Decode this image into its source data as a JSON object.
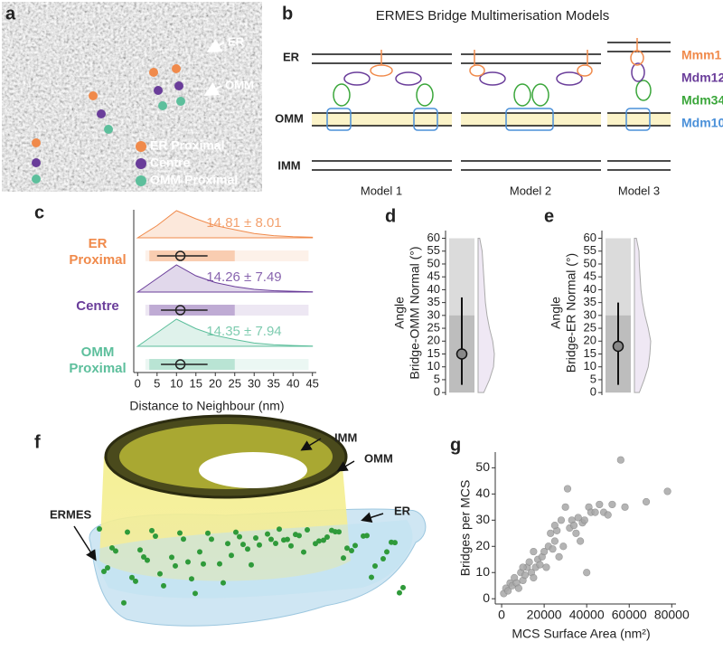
{
  "panel_labels": [
    "a",
    "b",
    "c",
    "d",
    "e",
    "f",
    "g"
  ],
  "panel_a": {
    "overlay_labels": [
      "ER",
      "OMM"
    ],
    "legend": [
      {
        "label": "ER Proximal",
        "color": "#f08a4b"
      },
      {
        "label": "Centre",
        "color": "#6a3d9a"
      },
      {
        "label": "OMM Proximal",
        "color": "#5dbf9c"
      }
    ]
  },
  "panel_b": {
    "title": "ERMES Bridge Multimerisation Models",
    "membranes": [
      "ER",
      "OMM",
      "IMM"
    ],
    "models": [
      "Model 1",
      "Model 2",
      "Model 3"
    ],
    "proteins": [
      {
        "name": "Mmm1",
        "color": "#f08a4b"
      },
      {
        "name": "Mdm12",
        "color": "#6a3d9a"
      },
      {
        "name": "Mdm34",
        "color": "#3aa63a"
      },
      {
        "name": "Mdm10",
        "color": "#4a90d9"
      }
    ]
  },
  "panel_f": {
    "labels": [
      "IMM",
      "OMM",
      "ER",
      "ERMES"
    ]
  },
  "chart_data": [
    {
      "type": "raincloud",
      "xlabel": "Distance to Neighbour (nm)",
      "xlim": [
        -1,
        46
      ],
      "xticks": [
        0,
        5,
        10,
        15,
        20,
        25,
        30,
        35,
        40,
        45
      ],
      "density_x": [
        0,
        5,
        10,
        15,
        20,
        25,
        30,
        35,
        40,
        45
      ],
      "series": [
        {
          "name": [
            "ER",
            "Proximal"
          ],
          "color": "#f08a4b",
          "summary_label": "14.81 ± 8.01",
          "median": 11,
          "whisker": [
            5,
            18
          ],
          "density": [
            0,
            0.45,
            1,
            0.7,
            0.45,
            0.3,
            0.16,
            0.08,
            0.04,
            0.02
          ]
        },
        {
          "name": [
            "Centre"
          ],
          "color": "#6a3d9a",
          "summary_label": "14.26 ± 7.49",
          "median": 11,
          "whisker": [
            6,
            18
          ],
          "density": [
            0,
            0.5,
            1,
            0.6,
            0.35,
            0.2,
            0.1,
            0.05,
            0.03,
            0.01
          ]
        },
        {
          "name": [
            "OMM",
            "Proximal"
          ],
          "color": "#5dbf9c",
          "summary_label": "14.35 ± 7.94",
          "median": 11,
          "whisker": [
            6,
            18
          ],
          "density": [
            0,
            0.5,
            1,
            0.65,
            0.4,
            0.25,
            0.12,
            0.06,
            0.03,
            0.01
          ]
        }
      ]
    },
    {
      "type": "half-violin",
      "ylabel": [
        "Angle",
        "Bridge-OMM Normal (°)"
      ],
      "ylim": [
        -1,
        63
      ],
      "yticks": [
        0,
        5,
        10,
        15,
        20,
        25,
        30,
        35,
        40,
        45,
        50,
        55,
        60
      ],
      "color": "#999999",
      "median": 15,
      "whisker": [
        3,
        37
      ],
      "density_y": [
        0,
        5,
        10,
        15,
        20,
        25,
        30,
        35,
        40,
        45,
        50,
        55,
        60
      ],
      "density": [
        0.35,
        0.7,
        0.95,
        1,
        0.9,
        0.7,
        0.55,
        0.45,
        0.4,
        0.35,
        0.3,
        0.25,
        0.1
      ]
    },
    {
      "type": "half-violin",
      "ylabel": [
        "Angle",
        "Bridge-ER Normal (°)"
      ],
      "ylim": [
        -1,
        63
      ],
      "yticks": [
        0,
        5,
        10,
        15,
        20,
        25,
        30,
        35,
        40,
        45,
        50,
        55,
        60
      ],
      "color": "#999999",
      "median": 18,
      "whisker": [
        3,
        35
      ],
      "density_y": [
        0,
        5,
        10,
        15,
        20,
        25,
        30,
        35,
        40,
        45,
        50,
        55,
        60
      ],
      "density": [
        0.3,
        0.6,
        0.85,
        0.95,
        1,
        0.85,
        0.65,
        0.5,
        0.4,
        0.35,
        0.3,
        0.28,
        0.12
      ]
    },
    {
      "type": "scatter",
      "xlabel": "MCS Surface Area (nm²)",
      "ylabel": "Bridges per MCS",
      "color": "#a8a8a8",
      "xlim": [
        -3000,
        82000
      ],
      "xticks": [
        0,
        20000,
        40000,
        60000,
        80000
      ],
      "ylim": [
        -2,
        56
      ],
      "yticks": [
        0,
        10,
        20,
        30,
        40,
        50
      ],
      "x": [
        1000,
        2000,
        3000,
        4000,
        5000,
        6000,
        7000,
        8000,
        9000,
        10000,
        11000,
        12000,
        13000,
        14000,
        15000,
        16000,
        17000,
        18000,
        19000,
        20000,
        21000,
        22000,
        23000,
        24000,
        25000,
        26000,
        27000,
        28000,
        29000,
        30000,
        31000,
        32000,
        33000,
        34000,
        35000,
        36000,
        37000,
        38000,
        39000,
        40000,
        41000,
        42000,
        44000,
        46000,
        48000,
        50000,
        52000,
        56000,
        58000,
        68000,
        78000,
        15000,
        10000,
        25000
      ],
      "y": [
        2,
        4,
        3,
        6,
        5,
        8,
        6,
        4,
        10,
        7,
        9,
        12,
        14,
        10,
        8,
        12,
        15,
        13,
        16,
        18,
        12,
        20,
        25,
        19,
        22,
        26,
        16,
        30,
        20,
        35,
        42,
        27,
        30,
        28,
        25,
        31,
        22,
        29,
        30,
        10,
        35,
        33,
        33,
        36,
        33,
        32,
        36,
        53,
        35,
        37,
        41,
        18,
        12,
        28
      ]
    }
  ]
}
